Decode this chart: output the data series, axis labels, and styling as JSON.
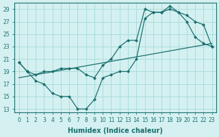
{
  "xlabel": "Humidex (Indice chaleur)",
  "bg_color": "#d4f0f0",
  "grid_color": "#aadddd",
  "line_color": "#1a6e6e",
  "xlim": [
    -0.5,
    23.5
  ],
  "ylim": [
    12.5,
    30
  ],
  "xticks": [
    0,
    1,
    2,
    3,
    4,
    5,
    6,
    7,
    8,
    9,
    10,
    11,
    12,
    13,
    14,
    15,
    16,
    17,
    18,
    19,
    20,
    21,
    22,
    23
  ],
  "yticks": [
    13,
    15,
    17,
    19,
    21,
    23,
    25,
    27,
    29
  ],
  "line1_x": [
    0,
    1,
    2,
    3,
    4,
    5,
    6,
    7,
    8,
    9,
    10,
    11,
    12,
    13,
    14,
    15,
    16,
    17,
    18,
    19,
    20,
    21,
    22,
    23
  ],
  "line1_y": [
    20.5,
    19.0,
    17.5,
    17.0,
    15.5,
    15.0,
    15.0,
    13.0,
    13.0,
    14.5,
    18.0,
    18.5,
    19.0,
    19.0,
    21.0,
    27.5,
    28.5,
    28.5,
    29.0,
    28.5,
    27.0,
    24.5,
    23.5,
    23.0
  ],
  "line2_x": [
    0,
    1,
    2,
    3,
    4,
    5,
    6,
    7,
    8,
    9,
    10,
    11,
    12,
    13,
    14,
    15,
    16,
    17,
    18,
    19,
    20,
    21,
    22,
    23
  ],
  "line2_y": [
    20.5,
    19.0,
    18.5,
    19.0,
    19.0,
    19.5,
    19.5,
    19.5,
    18.5,
    18.0,
    20.0,
    21.0,
    23.0,
    24.0,
    24.0,
    29.0,
    28.5,
    28.5,
    29.5,
    28.5,
    28.0,
    27.0,
    26.5,
    23.0
  ],
  "line3_x": [
    0,
    23
  ],
  "line3_y": [
    18.0,
    23.5
  ]
}
